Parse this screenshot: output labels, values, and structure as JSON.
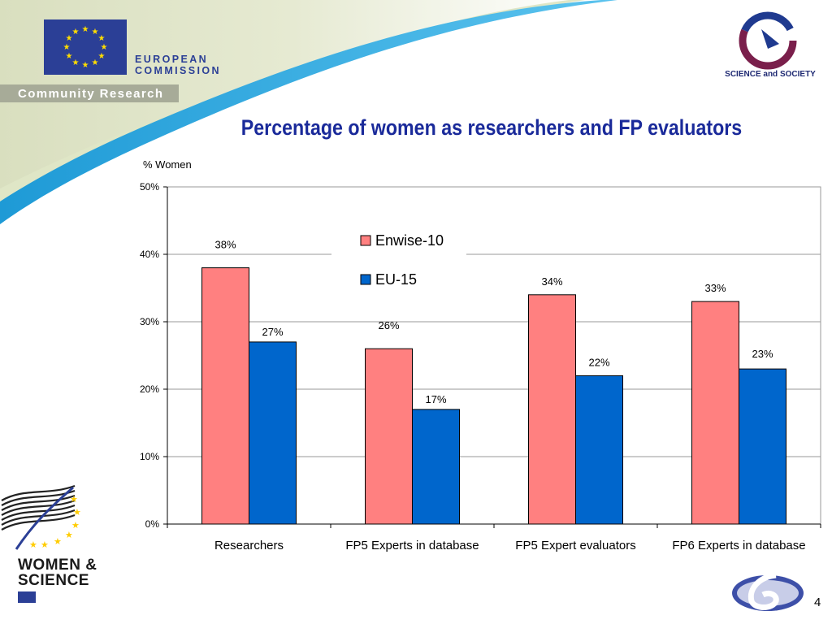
{
  "header": {
    "eu_line1": "EUROPEAN",
    "eu_line2": "COMMISSION",
    "community": "Community Research",
    "science_society": "SCIENCE and SOCIETY"
  },
  "slide": {
    "title": "Percentage of women as researchers and FP evaluators",
    "page_number": "4"
  },
  "footer": {
    "women_line1": "WOMEN &",
    "women_line2": "SCIENCE"
  },
  "colors": {
    "enwise": "#ff8080",
    "eu15": "#0066cc",
    "title": "#1a2a9a",
    "brand_blue": "#2b3f96"
  },
  "chart_data": {
    "type": "bar",
    "ylabel": "% Women",
    "xlabel": "",
    "ylim": [
      0,
      50
    ],
    "yticks": [
      0,
      10,
      20,
      30,
      40,
      50
    ],
    "ytick_labels": [
      "0%",
      "10%",
      "20%",
      "30%",
      "40%",
      "50%"
    ],
    "grid": true,
    "legend_position": "top-center",
    "categories": [
      "Researchers",
      "FP5 Experts in database",
      "FP5 Expert evaluators",
      "FP6 Experts in database"
    ],
    "series": [
      {
        "name": "Enwise-10",
        "values": [
          38,
          26,
          34,
          33
        ],
        "labels": [
          "38%",
          "26%",
          "34%",
          "33%"
        ]
      },
      {
        "name": "EU-15",
        "values": [
          27,
          17,
          22,
          23
        ],
        "labels": [
          "27%",
          "17%",
          "22%",
          "23%"
        ]
      }
    ]
  }
}
